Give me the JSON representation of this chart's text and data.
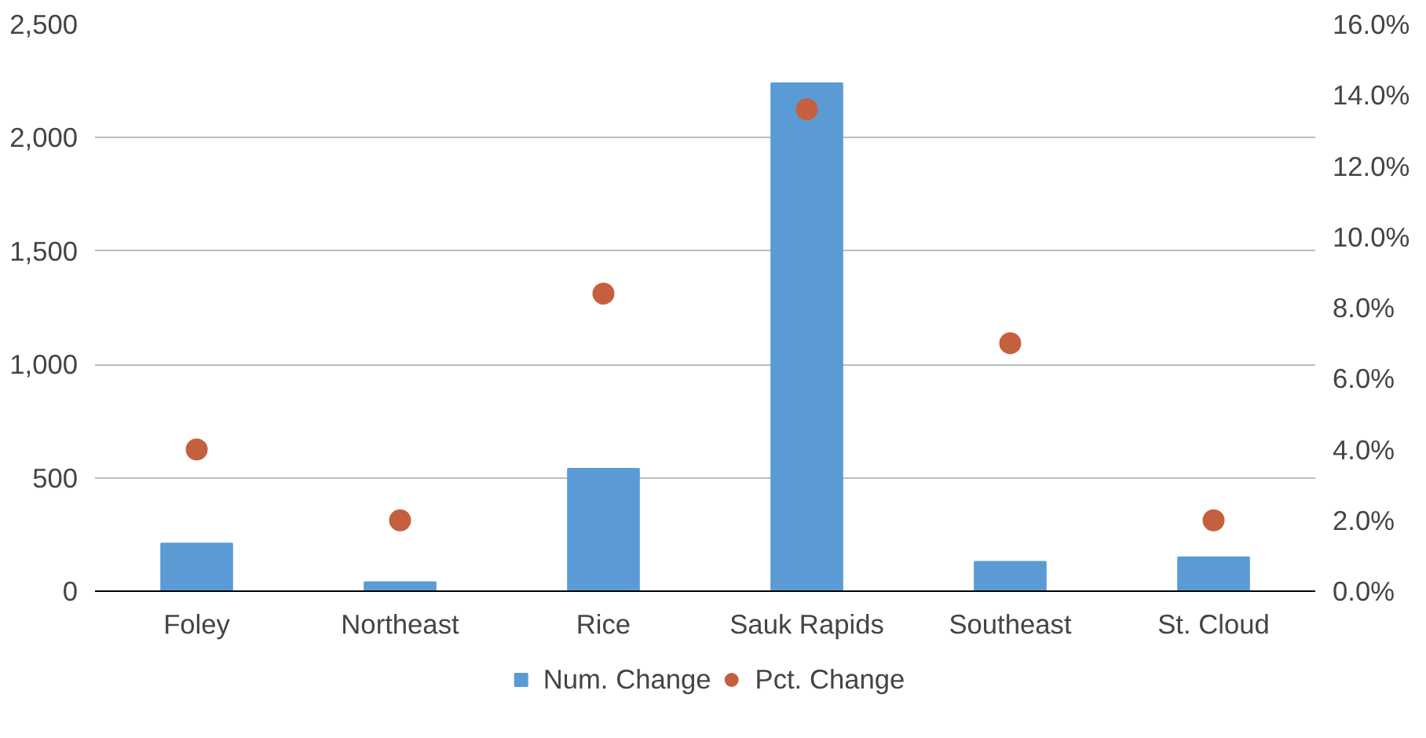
{
  "chart_data": {
    "type": "bar",
    "categories": [
      "Foley",
      "Northeast",
      "Rice",
      "Sauk Rapids",
      "Southeast",
      "St. Cloud"
    ],
    "series": [
      {
        "name": "Num. Change",
        "color": "#5b9bd5",
        "values": [
          210,
          40,
          540,
          2240,
          130,
          150
        ]
      },
      {
        "name": "Pct. Change",
        "type": "scatter",
        "axis": "y2",
        "color": "#c5603f",
        "values": [
          4.0,
          2.0,
          8.4,
          13.6,
          7.0,
          2.0
        ]
      }
    ],
    "ylim": [
      0,
      2500
    ],
    "yticks": [
      0,
      {
        "value": 500,
        "label": "500"
      },
      {
        "value": 1000,
        "label": "1,000"
      },
      {
        "value": 1500,
        "label": "1,500"
      },
      {
        "value": 2000,
        "label": "2,000"
      },
      {
        "value": 2500,
        "label": "2,500"
      }
    ],
    "y2lim": [
      0,
      16
    ],
    "y2ticks": [
      {
        "value": 0,
        "label": "0.0%"
      },
      {
        "value": 2,
        "label": "2.0%"
      },
      {
        "value": 4,
        "label": "4.0%"
      },
      {
        "value": 6,
        "label": "6.0%"
      },
      {
        "value": 8,
        "label": "8.0%"
      },
      {
        "value": 10,
        "label": "10.0%"
      },
      {
        "value": 12,
        "label": "12.0%"
      },
      {
        "value": 14,
        "label": "14.0%"
      },
      {
        "value": 16,
        "label": "16.0%"
      }
    ],
    "grid": "y",
    "legend": "bottom",
    "marker": "circle"
  }
}
